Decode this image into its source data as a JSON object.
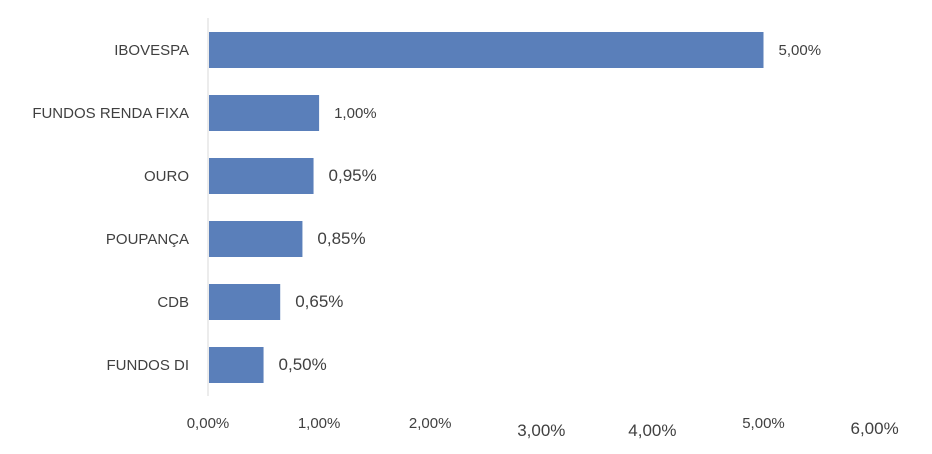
{
  "chart_data": {
    "type": "bar",
    "orientation": "horizontal",
    "categories": [
      "IBOVESPA",
      "FUNDOS RENDA FIXA",
      "OURO",
      "POUPANÇA",
      "CDB",
      "FUNDOS DI"
    ],
    "values": [
      5.0,
      1.0,
      0.95,
      0.85,
      0.65,
      0.5
    ],
    "value_labels": [
      "5,00%",
      "1,00%",
      "0,95%",
      "0,85%",
      "0,65%",
      "0,50%"
    ],
    "xlim": [
      0,
      6
    ],
    "x_ticks": [
      0,
      1,
      2,
      3,
      4,
      5,
      6
    ],
    "x_tick_labels": [
      "0,00%",
      "1,00%",
      "2,00%",
      "3,00%",
      "4,00%",
      "5,00%",
      "6,00%"
    ],
    "title": "",
    "xlabel": "",
    "ylabel": "",
    "grid": false,
    "legend": "none",
    "colors": {
      "bar": "#5A7FBA",
      "axis": "#D9D9D9",
      "text": "#404040"
    }
  }
}
